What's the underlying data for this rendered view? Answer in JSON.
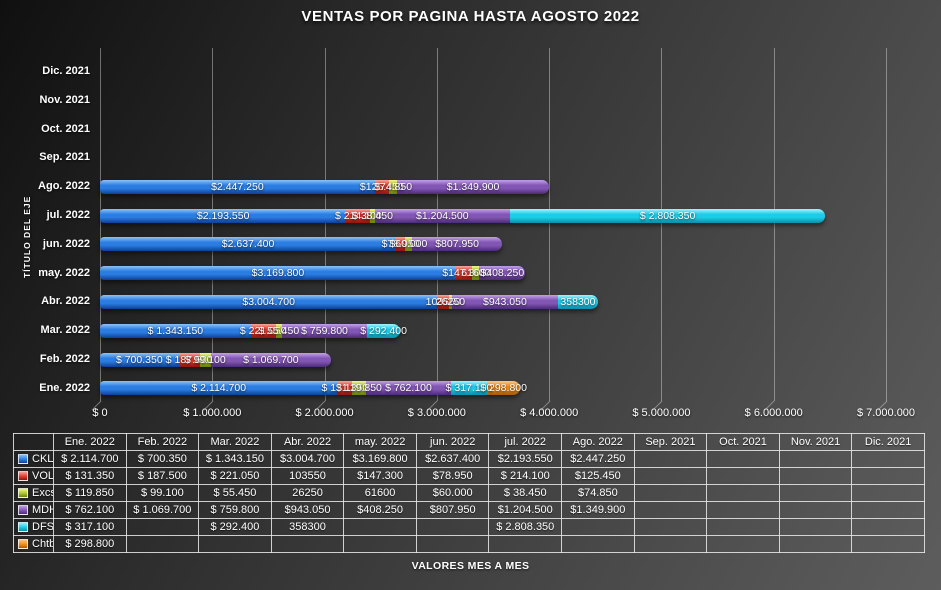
{
  "chart_data": {
    "type": "bar",
    "orientation": "horizontal-stacked",
    "title": "VENTAS POR PAGINA HASTA AGOSTO 2022",
    "y_axis_title": "TÍTULO DEL EJE",
    "x_axis_title": "VALORES MES A MES",
    "grid": true,
    "legend_position": "table-left",
    "xlim": [
      0,
      7000000
    ],
    "x_ticks": [
      "$ 0",
      "$ 1.000.000",
      "$ 2.000.000",
      "$ 3.000.000",
      "$ 4.000.000",
      "$ 5.000.000",
      "$ 6.000.000",
      "$ 7.000.000"
    ],
    "categories_top_to_bottom": [
      "Dic. 2021",
      "Nov. 2021",
      "Oct. 2021",
      "Sep. 2021",
      "Ago. 2022",
      "jul. 2022",
      "jun. 2022",
      "may. 2022",
      "Abr. 2022",
      "Mar. 2022",
      "Feb. 2022",
      "Ene. 2022"
    ],
    "columns": [
      "Ene. 2022",
      "Feb. 2022",
      "Mar. 2022",
      "Abr. 2022",
      "may. 2022",
      "jun. 2022",
      "jul. 2022",
      "Ago. 2022",
      "Sep. 2021",
      "Oct. 2021",
      "Nov. 2021",
      "Dic. 2021"
    ],
    "series": [
      {
        "name": "CKL",
        "color": "#2b7de2",
        "gradient": [
          "#85bdf4",
          "#2b7de2",
          "#0f3f96"
        ],
        "values": [
          2114700,
          700350,
          1343150,
          3004700,
          3169800,
          2637400,
          2193550,
          2447250,
          null,
          null,
          null,
          null
        ],
        "labels": [
          "$ 2.114.700",
          "$ 700.350",
          "$ 1.343.150",
          "$3.004.700",
          "$3.169.800",
          "$2.637.400",
          "$2.193.550",
          "$2.447.250",
          "",
          "",
          "",
          ""
        ]
      },
      {
        "name": "VOL",
        "color": "#e23b2e",
        "gradient": [
          "#f79d94",
          "#e23b2e",
          "#8e150d"
        ],
        "values": [
          131350,
          187500,
          221050,
          103550,
          147300,
          78950,
          214100,
          125450,
          null,
          null,
          null,
          null
        ],
        "labels": [
          "$ 131.350",
          "$ 187.500",
          "$ 221.050",
          "103550",
          "$147.300",
          "$78.950",
          "$ 214.100",
          "$125.450",
          "",
          "",
          "",
          ""
        ]
      },
      {
        "name": "Excs",
        "color": "#aec52e",
        "gradient": [
          "#e9f287",
          "#aec52e",
          "#66800f"
        ],
        "values": [
          119850,
          99100,
          55450,
          26250,
          61600,
          60000,
          38450,
          74850,
          null,
          null,
          null,
          null
        ],
        "labels": [
          "$ 119.850",
          "$ 99.100",
          "$ 55.450",
          "26250",
          "61600",
          "$60.000",
          "$ 38.450",
          "$74.850",
          "",
          "",
          "",
          ""
        ]
      },
      {
        "name": "MDH",
        "color": "#8256b4",
        "gradient": [
          "#bd9ae4",
          "#8256b4",
          "#4c2b78"
        ],
        "values": [
          762100,
          1069700,
          759800,
          943050,
          408250,
          807950,
          1204500,
          1349900,
          null,
          null,
          null,
          null
        ],
        "labels": [
          "$ 762.100",
          "$ 1.069.700",
          "$ 759.800",
          "$943.050",
          "$408.250",
          "$807.950",
          "$1.204.500",
          "$1.349.900",
          "",
          "",
          "",
          ""
        ]
      },
      {
        "name": "DFS",
        "color": "#1ecbe8",
        "gradient": [
          "#97f0fb",
          "#1ecbe8",
          "#0b8fa8"
        ],
        "values": [
          317100,
          null,
          292400,
          358300,
          null,
          null,
          2808350,
          null,
          null,
          null,
          null,
          null
        ],
        "labels": [
          "$ 317.100",
          "",
          "$ 292.400",
          "358300",
          "",
          "",
          "$ 2.808.350",
          "",
          "",
          "",
          "",
          ""
        ]
      },
      {
        "name": "Chtb",
        "color": "#ee8d1f",
        "gradient": [
          "#ffc27d",
          "#ee8d1f",
          "#a85a06"
        ],
        "values": [
          298800,
          null,
          null,
          null,
          null,
          null,
          null,
          null,
          null,
          null,
          null,
          null
        ],
        "labels": [
          "$ 298.800",
          "",
          "",
          "",
          "",
          "",
          "",
          "",
          "",
          "",
          "",
          ""
        ]
      }
    ]
  }
}
